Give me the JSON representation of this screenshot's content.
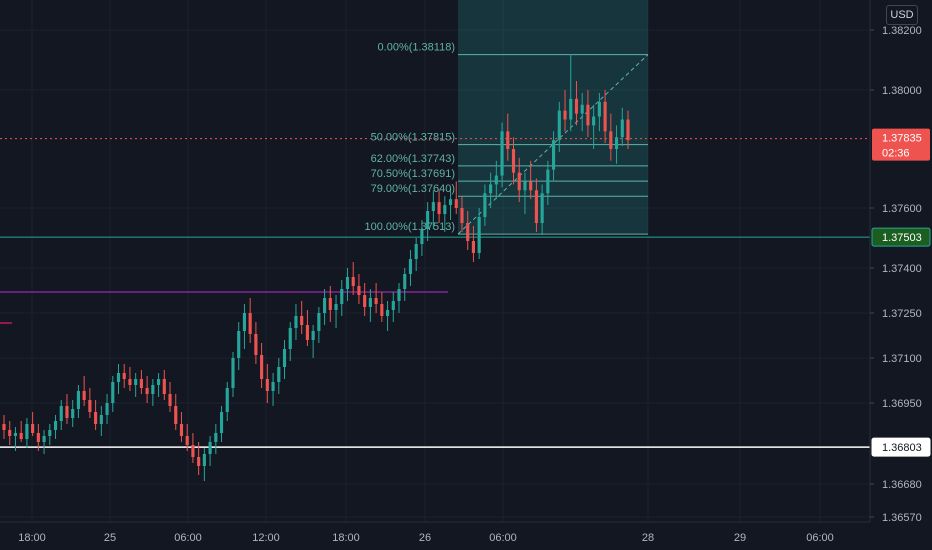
{
  "currency": "USD",
  "chart_data": {
    "type": "candlestick",
    "instrument_quote": "USD",
    "y_range": [
      1.3657,
      1.3822
    ],
    "price_ticks": [
      "1.38200",
      "1.38000",
      "1.37600",
      "1.37400",
      "1.37250",
      "1.37100",
      "1.36950",
      "1.36680",
      "1.36570"
    ],
    "time_ticks": [
      "18:00",
      "25",
      "06:00",
      "12:00",
      "18:00",
      "26",
      "06:00",
      "28",
      "29",
      "06:00"
    ],
    "current_price": "1.37835",
    "countdown": "02:36",
    "horizontal_levels": [
      {
        "price": "1.37503",
        "color": "#26a69a"
      },
      {
        "price": "1.36803",
        "color": "#ffffff"
      }
    ],
    "purple_level": {
      "price": 1.3732,
      "color": "#9c27b0"
    },
    "fib_levels": [
      {
        "label": "0.00%(1.38118)",
        "price": 1.38118
      },
      {
        "label": "50.00%(1.37815)",
        "price": 1.37815
      },
      {
        "label": "62.00%(1.37743)",
        "price": 1.37743
      },
      {
        "label": "70.50%(1.37691)",
        "price": 1.37691
      },
      {
        "label": "79.00%(1.37640)",
        "price": 1.3764
      },
      {
        "label": "100.00%(1.37513)",
        "price": 1.37513
      }
    ],
    "candles": [
      [
        1.3688,
        1.3691,
        1.3683,
        1.3686
      ],
      [
        1.3686,
        1.3689,
        1.3681,
        1.3684
      ],
      [
        1.3684,
        1.3687,
        1.3679,
        1.3685
      ],
      [
        1.3685,
        1.3689,
        1.3682,
        1.3683
      ],
      [
        1.3683,
        1.369,
        1.368,
        1.3688
      ],
      [
        1.3688,
        1.3692,
        1.3684,
        1.3685
      ],
      [
        1.3685,
        1.3688,
        1.3679,
        1.3682
      ],
      [
        1.3682,
        1.3686,
        1.3678,
        1.3684
      ],
      [
        1.3684,
        1.3688,
        1.3681,
        1.3686
      ],
      [
        1.3686,
        1.3691,
        1.3683,
        1.3689
      ],
      [
        1.3689,
        1.3696,
        1.3686,
        1.3694
      ],
      [
        1.3694,
        1.3698,
        1.3688,
        1.369
      ],
      [
        1.369,
        1.3696,
        1.3687,
        1.3693
      ],
      [
        1.3693,
        1.3701,
        1.369,
        1.3699
      ],
      [
        1.3699,
        1.3704,
        1.3694,
        1.3696
      ],
      [
        1.3696,
        1.37,
        1.369,
        1.3692
      ],
      [
        1.3692,
        1.3696,
        1.3686,
        1.3688
      ],
      [
        1.3688,
        1.3694,
        1.3684,
        1.3691
      ],
      [
        1.3691,
        1.3698,
        1.3688,
        1.3695
      ],
      [
        1.3695,
        1.3704,
        1.3692,
        1.3702
      ],
      [
        1.3702,
        1.3708,
        1.3698,
        1.3705
      ],
      [
        1.3705,
        1.3708,
        1.37,
        1.3703
      ],
      [
        1.3703,
        1.3707,
        1.3699,
        1.3701
      ],
      [
        1.3701,
        1.3705,
        1.3697,
        1.3703
      ],
      [
        1.3703,
        1.3706,
        1.3698,
        1.37
      ],
      [
        1.37,
        1.3704,
        1.3695,
        1.3698
      ],
      [
        1.3698,
        1.3703,
        1.3694,
        1.3701
      ],
      [
        1.3701,
        1.3705,
        1.3697,
        1.3703
      ],
      [
        1.3703,
        1.3706,
        1.3696,
        1.3698
      ],
      [
        1.3698,
        1.3702,
        1.3692,
        1.3694
      ],
      [
        1.3694,
        1.3698,
        1.3686,
        1.3688
      ],
      [
        1.3688,
        1.3692,
        1.3682,
        1.3684
      ],
      [
        1.3684,
        1.3688,
        1.3679,
        1.3681
      ],
      [
        1.3681,
        1.3685,
        1.3675,
        1.3677
      ],
      [
        1.3677,
        1.3682,
        1.3671,
        1.3674
      ],
      [
        1.3674,
        1.368,
        1.3669,
        1.3678
      ],
      [
        1.3678,
        1.3684,
        1.3674,
        1.3682
      ],
      [
        1.3682,
        1.3688,
        1.3678,
        1.3685
      ],
      [
        1.3685,
        1.3694,
        1.3682,
        1.3692
      ],
      [
        1.3692,
        1.3702,
        1.3689,
        1.37
      ],
      [
        1.37,
        1.3712,
        1.3697,
        1.371
      ],
      [
        1.371,
        1.3722,
        1.3706,
        1.3719
      ],
      [
        1.3719,
        1.3728,
        1.3713,
        1.3725
      ],
      [
        1.3725,
        1.373,
        1.3715,
        1.3718
      ],
      [
        1.3718,
        1.3722,
        1.3708,
        1.3711
      ],
      [
        1.3711,
        1.3715,
        1.37,
        1.3703
      ],
      [
        1.3703,
        1.3708,
        1.3695,
        1.3699
      ],
      [
        1.3699,
        1.3705,
        1.3694,
        1.3702
      ],
      [
        1.3702,
        1.371,
        1.3698,
        1.3707
      ],
      [
        1.3707,
        1.3716,
        1.3703,
        1.3713
      ],
      [
        1.3713,
        1.3722,
        1.3709,
        1.372
      ],
      [
        1.372,
        1.3728,
        1.3716,
        1.3724
      ],
      [
        1.3724,
        1.3729,
        1.3718,
        1.3721
      ],
      [
        1.3721,
        1.3726,
        1.3714,
        1.3716
      ],
      [
        1.3716,
        1.3721,
        1.371,
        1.3719
      ],
      [
        1.3719,
        1.3727,
        1.3715,
        1.3725
      ],
      [
        1.3725,
        1.3733,
        1.3721,
        1.373
      ],
      [
        1.373,
        1.3734,
        1.3722,
        1.3726
      ],
      [
        1.3726,
        1.3731,
        1.372,
        1.3728
      ],
      [
        1.3728,
        1.3736,
        1.3724,
        1.3733
      ],
      [
        1.3733,
        1.374,
        1.3729,
        1.3737
      ],
      [
        1.3737,
        1.3742,
        1.3731,
        1.3734
      ],
      [
        1.3734,
        1.3738,
        1.3728,
        1.3731
      ],
      [
        1.3731,
        1.3735,
        1.3724,
        1.3727
      ],
      [
        1.3727,
        1.3733,
        1.3722,
        1.373
      ],
      [
        1.373,
        1.3735,
        1.3725,
        1.3728
      ],
      [
        1.3728,
        1.3732,
        1.3722,
        1.3724
      ],
      [
        1.3724,
        1.3729,
        1.3719,
        1.3726
      ],
      [
        1.3726,
        1.3732,
        1.3722,
        1.3729
      ],
      [
        1.3729,
        1.3735,
        1.3725,
        1.3733
      ],
      [
        1.3733,
        1.374,
        1.3729,
        1.3738
      ],
      [
        1.3738,
        1.3746,
        1.3734,
        1.3743
      ],
      [
        1.3743,
        1.375,
        1.3739,
        1.3748
      ],
      [
        1.3748,
        1.3756,
        1.3744,
        1.3753
      ],
      [
        1.3753,
        1.3762,
        1.3749,
        1.3759
      ],
      [
        1.3759,
        1.3766,
        1.3753,
        1.3762
      ],
      [
        1.3762,
        1.3766,
        1.3755,
        1.3758
      ],
      [
        1.3758,
        1.3764,
        1.3752,
        1.3761
      ],
      [
        1.3761,
        1.3767,
        1.3756,
        1.3763
      ],
      [
        1.3763,
        1.3769,
        1.3758,
        1.376
      ],
      [
        1.376,
        1.3764,
        1.3752,
        1.3755
      ],
      [
        1.3755,
        1.3759,
        1.3746,
        1.3749
      ],
      [
        1.3749,
        1.3754,
        1.3742,
        1.3745
      ],
      [
        1.3745,
        1.376,
        1.3743,
        1.3757
      ],
      [
        1.3757,
        1.3768,
        1.3754,
        1.3765
      ],
      [
        1.3765,
        1.3772,
        1.376,
        1.3768
      ],
      [
        1.3768,
        1.3776,
        1.3763,
        1.3771
      ],
      [
        1.3771,
        1.3789,
        1.3767,
        1.3786
      ],
      [
        1.3786,
        1.3792,
        1.3776,
        1.378
      ],
      [
        1.378,
        1.3784,
        1.3768,
        1.3772
      ],
      [
        1.3772,
        1.3777,
        1.3762,
        1.3766
      ],
      [
        1.3766,
        1.3772,
        1.3758,
        1.3769
      ],
      [
        1.3769,
        1.3776,
        1.3763,
        1.3766
      ],
      [
        1.3766,
        1.377,
        1.3752,
        1.3755
      ],
      [
        1.3755,
        1.3768,
        1.3751,
        1.3765
      ],
      [
        1.3765,
        1.3776,
        1.3761,
        1.3773
      ],
      [
        1.3773,
        1.3786,
        1.3769,
        1.3783
      ],
      [
        1.3783,
        1.3796,
        1.3779,
        1.3793
      ],
      [
        1.3793,
        1.38,
        1.3786,
        1.379
      ],
      [
        1.379,
        1.3812,
        1.3786,
        1.3797
      ],
      [
        1.3797,
        1.3803,
        1.3788,
        1.3792
      ],
      [
        1.3792,
        1.3799,
        1.3786,
        1.3795
      ],
      [
        1.3795,
        1.38,
        1.3784,
        1.3788
      ],
      [
        1.3788,
        1.3795,
        1.378,
        1.3791
      ],
      [
        1.3791,
        1.3799,
        1.3786,
        1.3796
      ],
      [
        1.3796,
        1.38,
        1.3782,
        1.3786
      ],
      [
        1.3786,
        1.3792,
        1.3776,
        1.378
      ],
      [
        1.378,
        1.3788,
        1.3775,
        1.3784
      ],
      [
        1.3784,
        1.3794,
        1.3781,
        1.379
      ],
      [
        1.379,
        1.3793,
        1.378,
        1.3783
      ]
    ]
  }
}
